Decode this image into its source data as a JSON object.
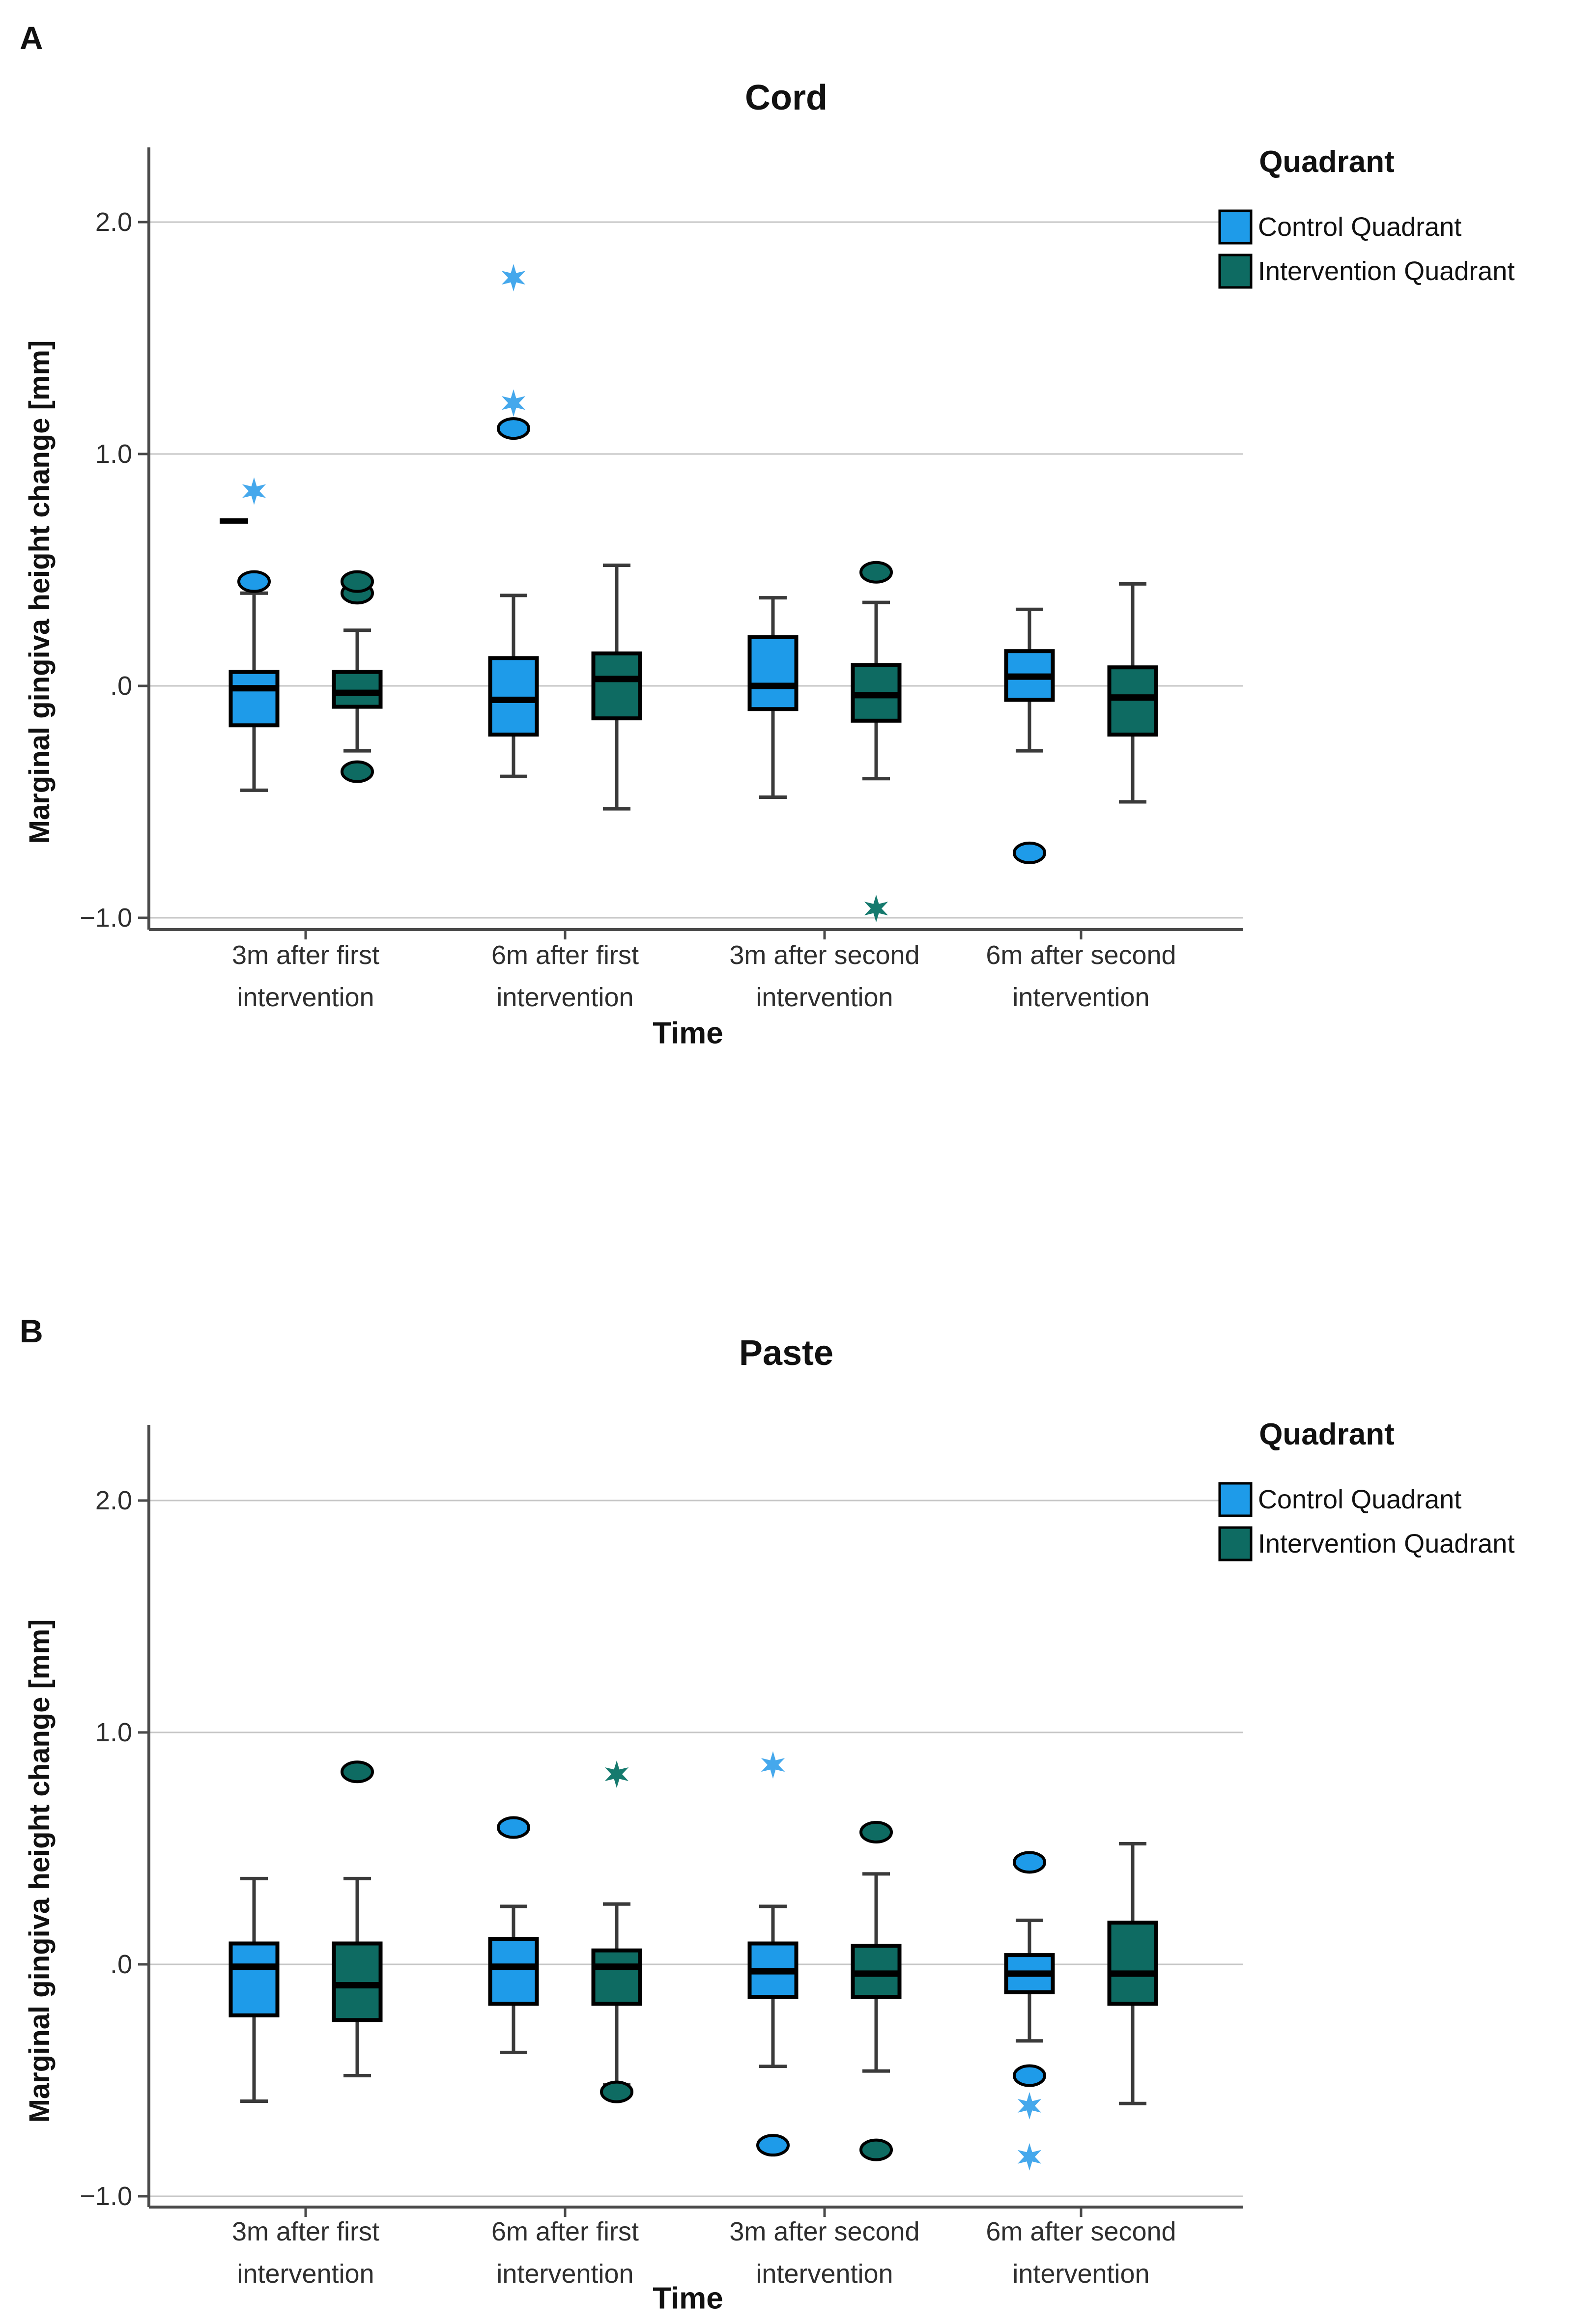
{
  "figure": {
    "description": "Two stacked SPSS-style grouped boxplot panels comparing marginal gingiva height change over time",
    "background": "#ffffff"
  },
  "colors": {
    "control_fill": "#1E9BE9",
    "intervention_fill": "#0E6B62",
    "control_star": "#45A8EC",
    "intervention_star": "#167A6E",
    "grid": "#C6C6C6",
    "axis": "#4A4A4A",
    "whisker": "#3A3A3A",
    "box_border": "#000000"
  },
  "chart_data": [
    {
      "type": "boxplot-grouped",
      "panel_letter": "A",
      "title": "Cord",
      "xlabel": "Time",
      "ylabel": "Marginal gingiva height change [mm]",
      "ylim": [
        -1.05,
        2.32
      ],
      "grid": "horizontal",
      "legend_position": "right-top",
      "legend": {
        "title": "Quadrant",
        "entries": [
          {
            "label": "Control Quadrant",
            "color": "#1E9BE9"
          },
          {
            "label": "Intervention Quadrant",
            "color": "#0E6B62"
          }
        ]
      },
      "yticks": [
        {
          "value": 2.0,
          "label": "2.0"
        },
        {
          "value": 1.0,
          "label": "1.0"
        },
        {
          "value": 0.0,
          "label": ".0"
        },
        {
          "value": -1.0,
          "label": "−1.0"
        }
      ],
      "categories": [
        {
          "line1": "3m after first",
          "line2": "intervention"
        },
        {
          "line1": "6m after first",
          "line2": "intervention"
        },
        {
          "line1": "3m after second",
          "line2": "intervention"
        },
        {
          "line1": "6m after second",
          "line2": "intervention"
        }
      ],
      "series": [
        {
          "name": "Control Quadrant",
          "boxes": [
            {
              "whislo": -0.45,
              "q1": -0.17,
              "med": -0.01,
              "q3": 0.06,
              "whishi": 0.4,
              "outliers": [
                {
                  "v": 0.45,
                  "type": "circle"
                },
                {
                  "v": 0.71,
                  "type": "dash"
                },
                {
                  "v": 0.84,
                  "type": "star"
                }
              ]
            },
            {
              "whislo": -0.39,
              "q1": -0.21,
              "med": -0.06,
              "q3": 0.12,
              "whishi": 0.39,
              "outliers": [
                {
                  "v": 1.11,
                  "type": "circle"
                },
                {
                  "v": 1.22,
                  "type": "star"
                },
                {
                  "v": 1.76,
                  "type": "star"
                }
              ]
            },
            {
              "whislo": -0.48,
              "q1": -0.1,
              "med": 0.0,
              "q3": 0.21,
              "whishi": 0.38,
              "outliers": []
            },
            {
              "whislo": -0.28,
              "q1": -0.06,
              "med": 0.04,
              "q3": 0.15,
              "whishi": 0.33,
              "outliers": [
                {
                  "v": -0.72,
                  "type": "circle"
                }
              ]
            }
          ]
        },
        {
          "name": "Intervention Quadrant",
          "boxes": [
            {
              "whislo": -0.28,
              "q1": -0.09,
              "med": -0.03,
              "q3": 0.06,
              "whishi": 0.24,
              "outliers": [
                {
                  "v": 0.4,
                  "type": "circle"
                },
                {
                  "v": 0.45,
                  "type": "circle"
                },
                {
                  "v": -0.37,
                  "type": "circle"
                }
              ]
            },
            {
              "whislo": -0.53,
              "q1": -0.14,
              "med": 0.03,
              "q3": 0.14,
              "whishi": 0.52,
              "outliers": []
            },
            {
              "whislo": -0.4,
              "q1": -0.15,
              "med": -0.04,
              "q3": 0.09,
              "whishi": 0.36,
              "outliers": [
                {
                  "v": 0.49,
                  "type": "circle"
                },
                {
                  "v": -0.96,
                  "type": "star"
                }
              ]
            },
            {
              "whislo": -0.5,
              "q1": -0.21,
              "med": -0.05,
              "q3": 0.08,
              "whishi": 0.44,
              "outliers": []
            }
          ]
        }
      ]
    },
    {
      "type": "boxplot-grouped",
      "panel_letter": "B",
      "title": "Paste",
      "xlabel": "Time",
      "ylabel": "Marginal gingiva height change [mm]",
      "ylim": [
        -1.05,
        2.33
      ],
      "grid": "horizontal",
      "legend_position": "right-top",
      "legend": {
        "title": "Quadrant",
        "entries": [
          {
            "label": "Control Quadrant",
            "color": "#1E9BE9"
          },
          {
            "label": "Intervention Quadrant",
            "color": "#0E6B62"
          }
        ]
      },
      "yticks": [
        {
          "value": 2.0,
          "label": "2.0"
        },
        {
          "value": 1.0,
          "label": "1.0"
        },
        {
          "value": 0.0,
          "label": ".0"
        },
        {
          "value": -1.0,
          "label": "−1.0"
        }
      ],
      "categories": [
        {
          "line1": "3m after first",
          "line2": "intervention"
        },
        {
          "line1": "6m after first",
          "line2": "intervention"
        },
        {
          "line1": "3m after second",
          "line2": "intervention"
        },
        {
          "line1": "6m after second",
          "line2": "intervention"
        }
      ],
      "series": [
        {
          "name": "Control Quadrant",
          "boxes": [
            {
              "whislo": -0.59,
              "q1": -0.22,
              "med": -0.01,
              "q3": 0.09,
              "whishi": 0.37,
              "outliers": []
            },
            {
              "whislo": -0.38,
              "q1": -0.17,
              "med": -0.01,
              "q3": 0.11,
              "whishi": 0.25,
              "outliers": [
                {
                  "v": 0.59,
                  "type": "circle"
                }
              ]
            },
            {
              "whislo": -0.44,
              "q1": -0.14,
              "med": -0.03,
              "q3": 0.09,
              "whishi": 0.25,
              "outliers": [
                {
                  "v": 0.86,
                  "type": "star"
                },
                {
                  "v": -0.78,
                  "type": "circle"
                }
              ]
            },
            {
              "whislo": -0.33,
              "q1": -0.12,
              "med": -0.04,
              "q3": 0.04,
              "whishi": 0.19,
              "outliers": [
                {
                  "v": 0.44,
                  "type": "circle"
                },
                {
                  "v": -0.48,
                  "type": "circle"
                },
                {
                  "v": -0.61,
                  "type": "star"
                },
                {
                  "v": -0.83,
                  "type": "star"
                }
              ]
            }
          ]
        },
        {
          "name": "Intervention Quadrant",
          "boxes": [
            {
              "whislo": -0.48,
              "q1": -0.24,
              "med": -0.09,
              "q3": 0.09,
              "whishi": 0.37,
              "outliers": [
                {
                  "v": 0.83,
                  "type": "circle"
                }
              ]
            },
            {
              "whislo": -0.52,
              "q1": -0.17,
              "med": -0.01,
              "q3": 0.06,
              "whishi": 0.26,
              "outliers": [
                {
                  "v": 0.82,
                  "type": "star"
                },
                {
                  "v": -0.55,
                  "type": "circle"
                }
              ]
            },
            {
              "whislo": -0.46,
              "q1": -0.14,
              "med": -0.04,
              "q3": 0.08,
              "whishi": 0.39,
              "outliers": [
                {
                  "v": 0.57,
                  "type": "circle"
                },
                {
                  "v": -0.8,
                  "type": "circle"
                }
              ]
            },
            {
              "whislo": -0.6,
              "q1": -0.17,
              "med": -0.04,
              "q3": 0.18,
              "whishi": 0.52,
              "outliers": []
            }
          ]
        }
      ]
    }
  ]
}
